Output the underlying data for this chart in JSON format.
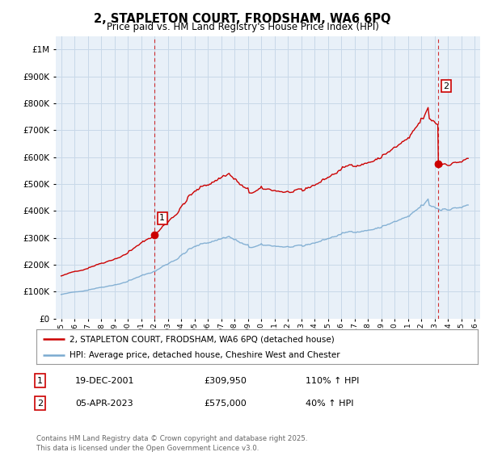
{
  "title": "2, STAPLETON COURT, FRODSHAM, WA6 6PQ",
  "subtitle": "Price paid vs. HM Land Registry's House Price Index (HPI)",
  "legend_line1": "2, STAPLETON COURT, FRODSHAM, WA6 6PQ (detached house)",
  "legend_line2": "HPI: Average price, detached house, Cheshire West and Chester",
  "footnote": "Contains HM Land Registry data © Crown copyright and database right 2025.\nThis data is licensed under the Open Government Licence v3.0.",
  "transaction1_date": "19-DEC-2001",
  "transaction1_price": "£309,950",
  "transaction1_hpi": "110% ↑ HPI",
  "transaction2_date": "05-APR-2023",
  "transaction2_price": "£575,000",
  "transaction2_hpi": "40% ↑ HPI",
  "background_color": "#ffffff",
  "plot_bg_color": "#e8f0f8",
  "grid_color": "#c8d8e8",
  "red_line_color": "#cc0000",
  "blue_line_color": "#7aaad0",
  "marker1_x": 2001.97,
  "marker1_y": 309950,
  "marker2_x": 2023.27,
  "marker2_y": 575000,
  "vline1_x": 2001.97,
  "vline2_x": 2023.27,
  "ylim": [
    0,
    1050000
  ],
  "xlim": [
    1994.6,
    2026.4
  ]
}
